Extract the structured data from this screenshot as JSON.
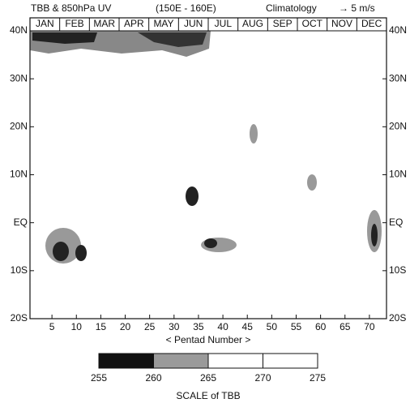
{
  "chart_data": {
    "type": "contour",
    "title": "TBB & 850hPa UV",
    "subtitle": "(150E - 160E)",
    "annotation": "Climatology",
    "vector_scale": "→ 5 m/s",
    "xlabel": "< Pentad Number >",
    "xlim": [
      0.5,
      73.5
    ],
    "xticks": [
      5,
      10,
      15,
      20,
      25,
      30,
      35,
      40,
      45,
      50,
      55,
      60,
      65,
      70
    ],
    "ylim": [
      -20,
      40
    ],
    "yticks": [
      {
        "value": -20,
        "label": "20S"
      },
      {
        "value": -10,
        "label": "10S"
      },
      {
        "value": 0,
        "label": "EQ"
      },
      {
        "value": 10,
        "label": "10N"
      },
      {
        "value": 20,
        "label": "20N"
      },
      {
        "value": 30,
        "label": "30N"
      },
      {
        "value": 40,
        "label": "40N"
      }
    ],
    "categories": [
      "JAN",
      "FEB",
      "MAR",
      "APR",
      "MAY",
      "JUN",
      "JUL",
      "AUG",
      "SEP",
      "OCT",
      "NOV",
      "DEC"
    ],
    "colorbar": {
      "label": "SCALE of TBB",
      "bins": [
        255,
        260,
        265,
        270,
        275
      ],
      "colors": [
        "#111111",
        "#9a9a9a",
        "#ffffff",
        "#ffffff"
      ]
    }
  }
}
